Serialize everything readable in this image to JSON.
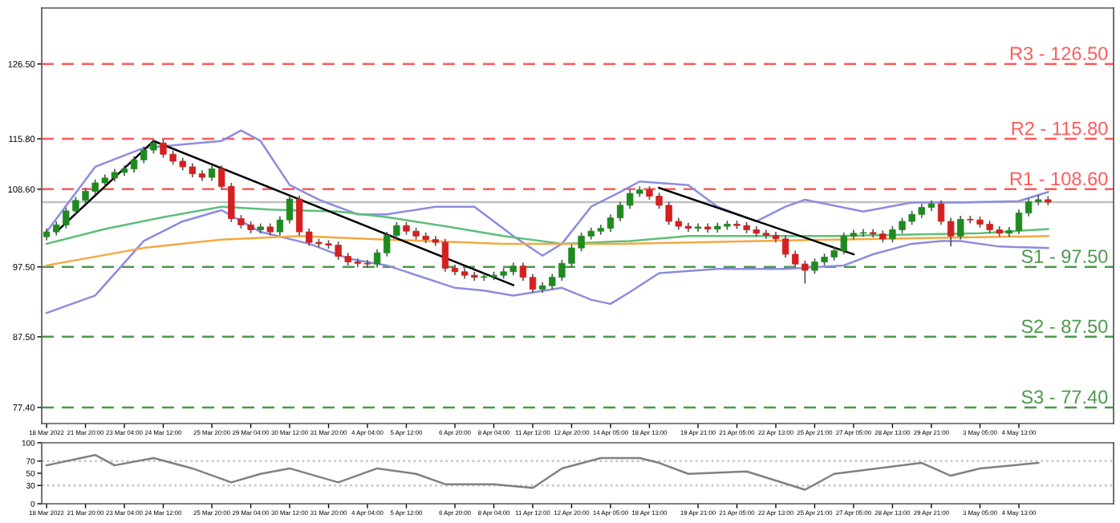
{
  "chart_data": [
    {
      "type": "candlestick",
      "ylim": [
        75.1,
        134.5
      ],
      "grid": false,
      "categories": [
        "18 Mar 2022",
        null,
        null,
        null,
        "21 Mar 20:00",
        null,
        null,
        null,
        "23 Mar 04:00",
        null,
        null,
        null,
        "24 Mar 12:00",
        null,
        null,
        null,
        null,
        "25 Mar 20:00",
        null,
        null,
        null,
        "29 Mar 04:00",
        null,
        null,
        null,
        "30 Mar 12:00",
        null,
        null,
        null,
        "31 Mar 20:00",
        null,
        null,
        null,
        "4 Apr 04:00",
        null,
        null,
        null,
        "5 Apr 12:00",
        null,
        null,
        null,
        null,
        "6 Apr 20:00",
        null,
        null,
        null,
        "8 Apr 04:00",
        null,
        null,
        null,
        "11 Apr 12:00",
        null,
        null,
        null,
        "12 Apr 20:00",
        null,
        null,
        null,
        "14 Apr 05:00",
        null,
        null,
        null,
        "18 Apr 13:00",
        null,
        null,
        null,
        null,
        "19 Apr 21:00",
        null,
        null,
        null,
        "21 Apr 05:00",
        null,
        null,
        null,
        "22 Apr 13:00",
        null,
        null,
        null,
        "25 Apr 21:00",
        null,
        null,
        null,
        "27 Apr 05:00",
        null,
        null,
        null,
        "28 Apr 13:00",
        null,
        null,
        null,
        "29 Apr 21:00",
        null,
        null,
        null,
        null,
        "3 May 05:00",
        null,
        null,
        null,
        "4 May 13:00",
        null,
        null,
        null
      ],
      "ohlc": [
        [
          101.8,
          103,
          101.3,
          102.5
        ],
        [
          102.5,
          104,
          102,
          103.5
        ],
        [
          103.5,
          106,
          103,
          105.5
        ],
        [
          105.5,
          107.5,
          105,
          107
        ],
        [
          107,
          108.8,
          106.5,
          108.3
        ],
        [
          108.3,
          110,
          107.8,
          109.5
        ],
        [
          109.5,
          110.7,
          109,
          110.2
        ],
        [
          110.2,
          111.5,
          109.7,
          111
        ],
        [
          111,
          112,
          110.5,
          111.5
        ],
        [
          111.5,
          113.3,
          111,
          112.8
        ],
        [
          112.8,
          114.7,
          112.3,
          114.2
        ],
        [
          114.2,
          115.7,
          113.7,
          115.2
        ],
        [
          115.2,
          115.7,
          113.1,
          113.6
        ],
        [
          113.6,
          114.1,
          112.1,
          112.6
        ],
        [
          112.6,
          113.1,
          111.3,
          111.8
        ],
        [
          111.8,
          112.3,
          110.3,
          110.8
        ],
        [
          110.8,
          111.3,
          109.8,
          110.3
        ],
        [
          110.3,
          112,
          109.8,
          111.5
        ],
        [
          111.5,
          112,
          108.5,
          109
        ],
        [
          109,
          109.5,
          103.9,
          104.4
        ],
        [
          104.4,
          104.9,
          103,
          103.5
        ],
        [
          103.5,
          104,
          102.3,
          102.8
        ],
        [
          102.8,
          103.7,
          102.3,
          103.2
        ],
        [
          103.2,
          103.7,
          102,
          102.5
        ],
        [
          102.5,
          104.7,
          102,
          104.2
        ],
        [
          104.2,
          107.7,
          103.7,
          107.2
        ],
        [
          107.2,
          107.7,
          102,
          102.5
        ],
        [
          102.5,
          103,
          100.5,
          101
        ],
        [
          101,
          101.5,
          100.3,
          100.8
        ],
        [
          100.8,
          101.3,
          100.1,
          100.6
        ],
        [
          100.6,
          101.1,
          98.5,
          99
        ],
        [
          99,
          99.5,
          97.7,
          98.2
        ],
        [
          98.2,
          98.7,
          97.5,
          98
        ],
        [
          98,
          98.5,
          97.4,
          97.9
        ],
        [
          97.9,
          100,
          97.4,
          99.5
        ],
        [
          99.5,
          102.5,
          99,
          102
        ],
        [
          102,
          103.9,
          101.5,
          103.4
        ],
        [
          103.4,
          103.9,
          102.1,
          102.6
        ],
        [
          102.6,
          103.1,
          101.4,
          101.9
        ],
        [
          101.9,
          102.4,
          100.9,
          101.4
        ],
        [
          101.4,
          101.9,
          100.5,
          101
        ],
        [
          101,
          101.5,
          96.8,
          97.3
        ],
        [
          97.3,
          97.8,
          96.3,
          96.8
        ],
        [
          96.8,
          97.3,
          95.8,
          96.3
        ],
        [
          96.3,
          96.8,
          95.5,
          96
        ],
        [
          96,
          96.6,
          95.5,
          96.1
        ],
        [
          96.1,
          96.8,
          95.6,
          96.3
        ],
        [
          96.3,
          97.3,
          95.8,
          96.8
        ],
        [
          96.8,
          98.1,
          96.3,
          97.6
        ],
        [
          97.6,
          98.1,
          95.5,
          96
        ],
        [
          96,
          96.5,
          93.8,
          94.3
        ],
        [
          94.3,
          95.3,
          93.8,
          94.8
        ],
        [
          94.8,
          96.5,
          94.3,
          96
        ],
        [
          96,
          98.5,
          95.5,
          98
        ],
        [
          98,
          100.7,
          97.5,
          100.2
        ],
        [
          100.2,
          102.4,
          99.7,
          101.9
        ],
        [
          101.9,
          103.1,
          101.4,
          102.6
        ],
        [
          102.6,
          103.5,
          102.1,
          103
        ],
        [
          103,
          105,
          102.5,
          104.5
        ],
        [
          104.5,
          106.8,
          104,
          106.3
        ],
        [
          106.3,
          108.5,
          105.8,
          108
        ],
        [
          108,
          109,
          107.5,
          108.5
        ],
        [
          108.5,
          109,
          107.1,
          107.6
        ],
        [
          107.6,
          108.1,
          105.8,
          106.3
        ],
        [
          106.3,
          106.8,
          103.5,
          104
        ],
        [
          104,
          104.5,
          102.8,
          103.3
        ],
        [
          103.3,
          103.8,
          102.5,
          103
        ],
        [
          103,
          103.7,
          102.5,
          103.2
        ],
        [
          103.2,
          103.7,
          102.4,
          102.9
        ],
        [
          102.9,
          103.8,
          102.4,
          103.3
        ],
        [
          103.3,
          104.1,
          102.8,
          103.6
        ],
        [
          103.6,
          104.1,
          102.9,
          103.4
        ],
        [
          103.4,
          103.9,
          102.3,
          102.8
        ],
        [
          102.8,
          103.3,
          101.8,
          102.3
        ],
        [
          102.3,
          102.8,
          101.5,
          102
        ],
        [
          102,
          102.5,
          101,
          101.5
        ],
        [
          101.5,
          102,
          98.8,
          99.3
        ],
        [
          99.3,
          99.8,
          97.4,
          97.9
        ],
        [
          97.9,
          98.4,
          95.1,
          97
        ],
        [
          97,
          98.7,
          96.5,
          98.2
        ],
        [
          98.2,
          99.4,
          97.7,
          98.9
        ],
        [
          98.9,
          100.3,
          98.4,
          99.8
        ],
        [
          99.8,
          102.4,
          99.3,
          101.9
        ],
        [
          101.9,
          102.8,
          101.4,
          102.3
        ],
        [
          102.3,
          102.9,
          101.8,
          102.4
        ],
        [
          102.4,
          102.9,
          101.7,
          102.2
        ],
        [
          102.2,
          102.7,
          101,
          101.5
        ],
        [
          101.5,
          103.3,
          101,
          102.8
        ],
        [
          102.8,
          104.5,
          102.3,
          104
        ],
        [
          104,
          105.5,
          103.5,
          105
        ],
        [
          105,
          106.5,
          104.5,
          106
        ],
        [
          106,
          107,
          105.5,
          106.5
        ],
        [
          106.5,
          107,
          103.5,
          104
        ],
        [
          104,
          104.5,
          100.4,
          101.9
        ],
        [
          101.9,
          104.8,
          101.4,
          104.3
        ],
        [
          104.3,
          104.8,
          103.7,
          104.2
        ],
        [
          104.2,
          104.7,
          103.1,
          103.6
        ],
        [
          103.6,
          104.1,
          102.3,
          102.8
        ],
        [
          102.8,
          103.3,
          101.8,
          102.3
        ],
        [
          102.3,
          103.2,
          101.8,
          102.7
        ],
        [
          102.7,
          105.7,
          102.2,
          105.2
        ],
        [
          105.2,
          107.3,
          104.7,
          106.8
        ],
        [
          106.8,
          107.8,
          106.3,
          107.1
        ],
        [
          107.1,
          107.6,
          106.3,
          106.75
        ]
      ],
      "series": [
        {
          "type": "line",
          "color": "#8c8ce0",
          "values": [
            102.5,
            null,
            null,
            null,
            null,
            111.8,
            null,
            null,
            null,
            null,
            114.5,
            null,
            null,
            null,
            null,
            null,
            null,
            null,
            115.5,
            null,
            117,
            null,
            115.5,
            null,
            null,
            109.2,
            null,
            null,
            107.1,
            null,
            null,
            null,
            105,
            null,
            null,
            105,
            null,
            null,
            null,
            null,
            106.1,
            null,
            null,
            null,
            106.1,
            null,
            null,
            null,
            101.9,
            null,
            null,
            99.1,
            null,
            100.8,
            null,
            null,
            106.1,
            null,
            null,
            108.2,
            null,
            109.7,
            null,
            null,
            null,
            null,
            109.2,
            null,
            null,
            106.1,
            null,
            null,
            null,
            104,
            null,
            null,
            106.1,
            null,
            107.1,
            null,
            null,
            null,
            null,
            null,
            105.4,
            null,
            null,
            null,
            null,
            106.7,
            null,
            null,
            null,
            null,
            106.7,
            null,
            null,
            null,
            null,
            null,
            106.9,
            null,
            null,
            108.2
          ]
        },
        {
          "type": "line",
          "color": "#8c8ce0",
          "values": [
            90.9,
            null,
            null,
            null,
            null,
            93.4,
            null,
            null,
            null,
            null,
            101.2,
            null,
            null,
            null,
            104,
            null,
            null,
            null,
            105.6,
            null,
            null,
            null,
            102.5,
            null,
            null,
            null,
            null,
            100.8,
            null,
            null,
            null,
            98.7,
            null,
            null,
            null,
            97.7,
            null,
            null,
            null,
            null,
            null,
            null,
            94.5,
            null,
            null,
            94.1,
            null,
            null,
            93.4,
            null,
            null,
            null,
            null,
            94.5,
            null,
            null,
            92.8,
            null,
            92.2,
            null,
            93.9,
            null,
            null,
            96.6,
            null,
            null,
            null,
            null,
            null,
            97.2,
            null,
            null,
            null,
            null,
            null,
            null,
            97.2,
            null,
            null,
            null,
            null,
            null,
            97.7,
            null,
            null,
            99.3,
            null,
            null,
            null,
            100.8,
            null,
            null,
            101.2,
            null,
            101.2,
            null,
            null,
            null,
            100.4,
            null,
            null,
            null,
            null,
            100.2
          ]
        },
        {
          "type": "line",
          "color": "#5cbf7a",
          "values": [
            100.8,
            null,
            null,
            null,
            null,
            null,
            102.9,
            null,
            null,
            null,
            null,
            null,
            104.6,
            null,
            null,
            null,
            null,
            null,
            106.1,
            null,
            null,
            null,
            null,
            105.7,
            null,
            null,
            null,
            null,
            null,
            null,
            105.4,
            null,
            null,
            null,
            null,
            104.6,
            null,
            null,
            null,
            null,
            null,
            103.3,
            null,
            null,
            null,
            null,
            null,
            101.9,
            null,
            null,
            null,
            null,
            null,
            100.8,
            null,
            null,
            null,
            null,
            null,
            null,
            101.2,
            null,
            null,
            null,
            null,
            null,
            101.9,
            null,
            null,
            null,
            null,
            null,
            null,
            null,
            null,
            null,
            null,
            null,
            null,
            null,
            null,
            101.9,
            null,
            null,
            null,
            null,
            null,
            null,
            null,
            null,
            null,
            null,
            null,
            null,
            null,
            null,
            102.3,
            null,
            null,
            null,
            null,
            null,
            null,
            102.9
          ]
        },
        {
          "type": "line",
          "color": "#f5a742",
          "values": [
            97.7,
            null,
            null,
            null,
            null,
            null,
            null,
            null,
            null,
            null,
            100.2,
            null,
            null,
            null,
            null,
            null,
            null,
            null,
            101.4,
            null,
            null,
            null,
            null,
            null,
            null,
            null,
            101.9,
            null,
            null,
            null,
            null,
            null,
            null,
            null,
            null,
            101.4,
            null,
            null,
            null,
            null,
            null,
            null,
            null,
            null,
            null,
            null,
            null,
            100.8,
            null,
            null,
            null,
            null,
            null,
            null,
            null,
            null,
            null,
            null,
            null,
            100.8,
            null,
            null,
            null,
            null,
            null,
            null,
            null,
            null,
            null,
            null,
            null,
            null,
            null,
            null,
            null,
            null,
            null,
            null,
            null,
            null,
            null,
            101.4,
            null,
            null,
            null,
            null,
            null,
            null,
            null,
            null,
            null,
            null,
            null,
            null,
            null,
            null,
            null,
            null,
            null,
            null,
            null,
            null,
            null,
            101.9
          ]
        },
        {
          "type": "line",
          "color": "#000000",
          "values": [
            null,
            102.5,
            null,
            null,
            null,
            null,
            null,
            null,
            null,
            null,
            null,
            115.5,
            null,
            null,
            null,
            null,
            null,
            null,
            null,
            null,
            null,
            null,
            null,
            null,
            null,
            null,
            null,
            null,
            null,
            null,
            null,
            null,
            null,
            null,
            null,
            null,
            null,
            null,
            null,
            null,
            null,
            null,
            null,
            null,
            null,
            null,
            null,
            null,
            null,
            null,
            null,
            null,
            null,
            null,
            null,
            null,
            null,
            null,
            null,
            null,
            null,
            null,
            null,
            null,
            null,
            null,
            null,
            null,
            null,
            null,
            null,
            null,
            null,
            null,
            null,
            null,
            null,
            null,
            null,
            null,
            null,
            null,
            null,
            null,
            null,
            null,
            null,
            null,
            null,
            null,
            null,
            null,
            null,
            null,
            null,
            null,
            null,
            null,
            null,
            null,
            null,
            null,
            null,
            null
          ]
        },
        {
          "type": "line",
          "color": "#000000",
          "values": [
            null,
            null,
            null,
            null,
            null,
            null,
            null,
            null,
            null,
            null,
            null,
            115.5,
            null,
            null,
            null,
            null,
            null,
            null,
            null,
            null,
            null,
            null,
            null,
            null,
            null,
            null,
            null,
            null,
            null,
            null,
            null,
            null,
            null,
            null,
            null,
            null,
            null,
            null,
            null,
            null,
            null,
            null,
            null,
            null,
            null,
            null,
            null,
            null,
            94.9,
            null,
            null,
            null,
            null,
            null,
            null,
            null,
            null,
            null,
            null,
            null,
            null,
            null,
            null,
            null,
            null,
            null,
            null,
            null,
            null,
            null,
            null,
            null,
            null,
            null,
            null,
            null,
            null,
            null,
            null,
            null,
            null,
            null,
            null,
            null,
            null,
            null,
            null,
            null,
            null,
            null,
            null,
            null,
            null,
            null,
            null,
            null,
            null,
            null,
            null,
            null,
            null,
            null,
            null,
            null
          ]
        },
        {
          "type": "line",
          "color": "#000000",
          "values": [
            null,
            null,
            null,
            null,
            null,
            null,
            null,
            null,
            null,
            null,
            null,
            null,
            null,
            null,
            null,
            null,
            null,
            null,
            null,
            null,
            null,
            null,
            null,
            null,
            null,
            null,
            null,
            null,
            null,
            null,
            null,
            null,
            null,
            null,
            null,
            null,
            null,
            null,
            null,
            null,
            null,
            null,
            null,
            null,
            null,
            null,
            null,
            null,
            null,
            null,
            null,
            null,
            null,
            null,
            null,
            null,
            null,
            null,
            null,
            null,
            null,
            null,
            null,
            108.8,
            null,
            null,
            null,
            null,
            null,
            null,
            null,
            null,
            null,
            null,
            null,
            null,
            null,
            null,
            null,
            null,
            null,
            null,
            null,
            99.3,
            null,
            null,
            null,
            null,
            null,
            null,
            null,
            null,
            null,
            null,
            null,
            null,
            null,
            null,
            null,
            null,
            null,
            null,
            null,
            null
          ]
        }
      ],
      "ref_lines": [
        {
          "axis": "y",
          "value": 126.5,
          "label": "R3 - 126.50",
          "color": "#ff5a5a",
          "line_style": "dashed"
        },
        {
          "axis": "y",
          "value": 115.8,
          "label": "R2 - 115.80",
          "color": "#ff5a5a",
          "line_style": "dashed"
        },
        {
          "axis": "y",
          "value": 108.6,
          "label": "R1 - 108.60",
          "color": "#ff5a5a",
          "line_style": "dashed"
        },
        {
          "axis": "y",
          "value": 106.75,
          "color": "#c0c0c0",
          "line_style": "solid"
        },
        {
          "axis": "y",
          "value": 97.5,
          "label": "S1 - 97.50",
          "color": "#4a9a4a",
          "line_style": "dashed"
        },
        {
          "axis": "y",
          "value": 87.5,
          "label": "S2 - 87.50",
          "color": "#4a9a4a",
          "line_style": "dashed"
        },
        {
          "axis": "y",
          "value": 77.4,
          "label": "S3 - 77.40",
          "color": "#4a9a4a",
          "line_style": "dashed"
        }
      ],
      "yticks": [
        {
          "value": 126.5,
          "label": "126.50"
        },
        {
          "value": 115.8,
          "label": "115.80"
        },
        {
          "value": 108.6,
          "label": "108.60"
        },
        {
          "value": 97.5,
          "label": "97.50"
        },
        {
          "value": 87.5,
          "label": "87.50"
        },
        {
          "value": 77.4,
          "label": "77.40"
        }
      ]
    },
    {
      "type": "line",
      "ylim": [
        0,
        100
      ],
      "yticks": [
        0,
        30,
        50,
        70,
        100
      ],
      "grid": false,
      "categories": [
        "18 Mar 2022",
        null,
        null,
        null,
        "21 Mar 20:00",
        null,
        null,
        null,
        "23 Mar 04:00",
        null,
        null,
        null,
        "24 Mar 12:00",
        null,
        null,
        null,
        null,
        "25 Mar 20:00",
        null,
        null,
        null,
        "29 Mar 04:00",
        null,
        null,
        null,
        "30 Mar 12:00",
        null,
        null,
        null,
        "31 Mar 20:00",
        null,
        null,
        null,
        "4 Apr 04:00",
        null,
        null,
        null,
        "5 Apr 12:00",
        null,
        null,
        null,
        null,
        "6 Apr 20:00",
        null,
        null,
        null,
        "8 Apr 04:00",
        null,
        null,
        null,
        "11 Apr 12:00",
        null,
        null,
        null,
        "12 Apr 20:00",
        null,
        null,
        null,
        "14 Apr 05:00",
        null,
        null,
        null,
        "18 Apr 13:00",
        null,
        null,
        null,
        null,
        "19 Apr 21:00",
        null,
        null,
        null,
        "21 Apr 05:00",
        null,
        null,
        null,
        "22 Apr 13:00",
        null,
        null,
        null,
        "25 Apr 21:00",
        null,
        null,
        null,
        "27 Apr 05:00",
        null,
        null,
        null,
        "28 Apr 13:00",
        null,
        null,
        null,
        "29 Apr 21:00",
        null,
        null,
        null,
        null,
        "3 May 05:00",
        null,
        null,
        null,
        "4 May 13:00",
        null,
        null,
        null
      ],
      "series": [
        {
          "color": "#808080",
          "values": [
            63,
            null,
            null,
            null,
            null,
            80,
            null,
            63,
            null,
            null,
            null,
            75,
            null,
            null,
            null,
            58,
            null,
            null,
            null,
            35,
            null,
            null,
            49,
            null,
            null,
            58,
            null,
            null,
            null,
            null,
            35,
            null,
            null,
            null,
            58,
            null,
            null,
            null,
            49,
            null,
            null,
            32,
            null,
            null,
            null,
            null,
            32,
            null,
            null,
            null,
            26,
            null,
            null,
            58,
            null,
            null,
            null,
            75,
            null,
            null,
            null,
            75,
            null,
            67,
            null,
            null,
            49,
            null,
            null,
            null,
            null,
            null,
            53,
            null,
            null,
            null,
            null,
            null,
            23,
            null,
            null,
            49,
            null,
            null,
            null,
            null,
            null,
            null,
            null,
            null,
            67,
            null,
            null,
            46,
            null,
            null,
            58,
            null,
            null,
            null,
            null,
            null,
            67,
            null
          ]
        }
      ],
      "ref_lines": [
        {
          "axis": "y",
          "value": 70,
          "color": "#c0c0c0",
          "line_style": "dotted"
        },
        {
          "axis": "y",
          "value": 30,
          "color": "#c0c0c0",
          "line_style": "dotted"
        }
      ]
    }
  ]
}
